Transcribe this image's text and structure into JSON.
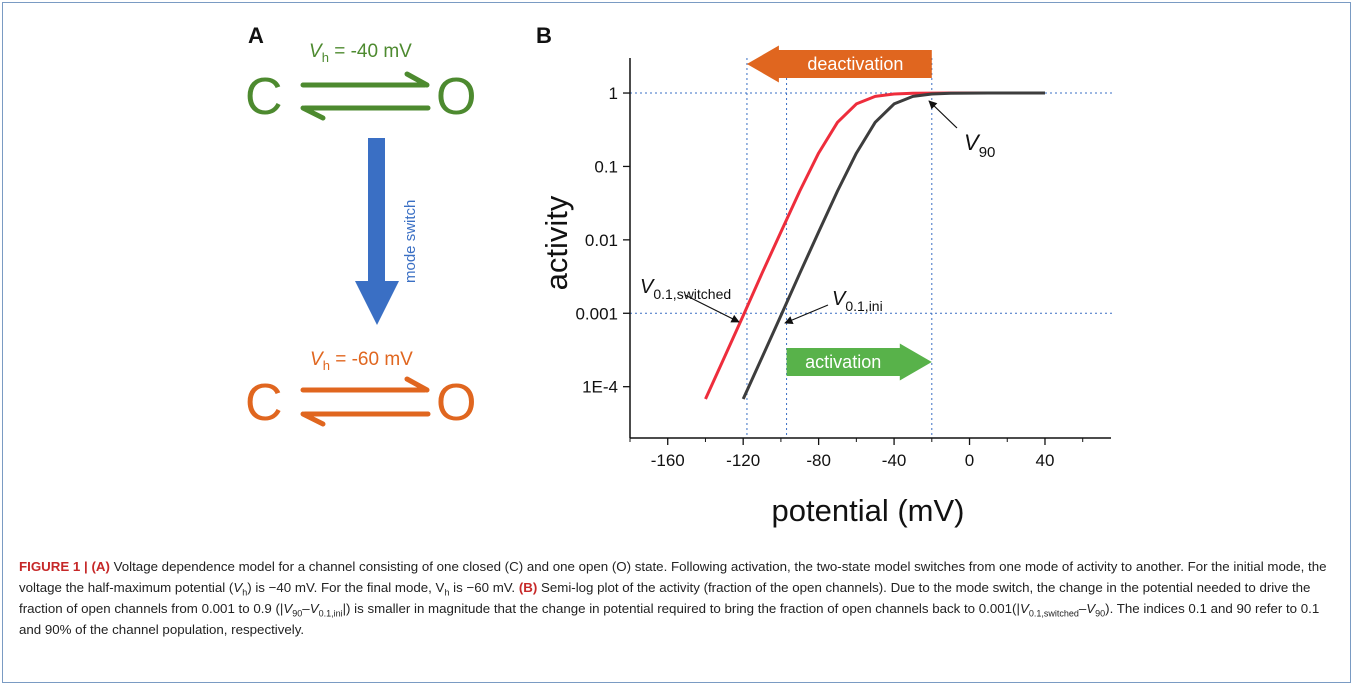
{
  "panel_a": {
    "label": "A",
    "top_state": {
      "vh_symbol": "V",
      "vh_sub": "h",
      "vh_value": " = -40 mV",
      "closed": "C",
      "open": "O",
      "color": "#4d8a2f"
    },
    "switch_label": "mode switch",
    "switch_color": "#3a6fc4",
    "bottom_state": {
      "vh_symbol": "V",
      "vh_sub": "h",
      "vh_value": " = -60 mV",
      "closed": "C",
      "open": "O",
      "color": "#e0661f"
    }
  },
  "panel_b": {
    "label": "B",
    "deactivation_label": "deactivation",
    "deactivation_color": "#e0661f",
    "activation_label": "activation",
    "activation_color": "#58b24a",
    "v90": {
      "symbol": "V",
      "sub": "90"
    },
    "v01_switched": {
      "symbol": "V",
      "sub": "0.1,switched"
    },
    "v01_ini": {
      "symbol": "V",
      "sub": "0.1,ini"
    }
  },
  "chart_data": {
    "type": "line",
    "xlabel": "potential (mV)",
    "ylabel": "activity",
    "y_scale": "log",
    "xlim": [
      -180,
      75
    ],
    "ylim": [
      2e-05,
      3
    ],
    "x_ticks": [
      -160,
      -120,
      -80,
      -40,
      0,
      40
    ],
    "y_ticks": [
      0.0001,
      0.001,
      0.01,
      0.1,
      1
    ],
    "y_tick_labels": [
      "1E-4",
      "0.001",
      "0.01",
      "0.1",
      "1"
    ],
    "grid": false,
    "series": [
      {
        "color": "#ee2d3c",
        "x": [
          -140,
          -130,
          -120,
          -110,
          -100,
          -90,
          -80,
          -70,
          -60,
          -50,
          -40,
          -30,
          -20,
          -10,
          0,
          10,
          20,
          30,
          40
        ],
        "y": [
          6.8e-05,
          0.00025,
          0.00093,
          0.0035,
          0.0128,
          0.0463,
          0.152,
          0.399,
          0.711,
          0.901,
          0.971,
          0.991,
          0.9974,
          0.9993,
          0.9998,
          0.99994,
          0.99998,
          1.0,
          1.0
        ]
      },
      {
        "color": "#3d3d3d",
        "x": [
          -120,
          -110,
          -100,
          -90,
          -80,
          -70,
          -60,
          -50,
          -40,
          -30,
          -20,
          -10,
          0,
          10,
          20,
          30,
          40
        ],
        "y": [
          6.8e-05,
          0.00025,
          0.00093,
          0.0035,
          0.0128,
          0.0463,
          0.152,
          0.399,
          0.711,
          0.901,
          0.971,
          0.991,
          0.9974,
          0.9993,
          0.9998,
          0.99994,
          1.0
        ]
      }
    ],
    "reference_lines": {
      "horizontal_y": [
        1,
        0.001
      ],
      "vertical_x": [
        -118,
        -97,
        -20
      ]
    },
    "arrows": [
      {
        "label": "deactivation",
        "from_x": -20,
        "to_x": -118
      },
      {
        "label": "activation",
        "from_x": -97,
        "to_x": -20
      }
    ]
  },
  "caption": {
    "figure_label": "FIGURE 1 |",
    "a_label": "(A)",
    "a_text": " Voltage dependence model for a channel consisting of one closed (C) and one open (O) state. Following activation, the two-state model switches from one mode of activity to another. For the initial mode, the voltage the half-maximum potential (",
    "vh_sym": "V",
    "vh_sub": "h",
    "a_text2": ") is −40 mV. For the final mode, V",
    "vh_sub2": "h",
    "a_text3": " is −60 mV. ",
    "b_label": "(B)",
    "b_text": " Semi-log plot of the activity (fraction of the open channels). Due to the mode switch, the change in the potential needed to drive the fraction of open channels from 0.001 to 0.9 (|",
    "b_v90": "V",
    "b_v90_sub": "90",
    "b_dash": "–",
    "b_vini": "V",
    "b_vini_sub": "0.1,ini",
    "b_text2": "|) is smaller in magnitude that the change in potential required to bring the fraction of open channels back to 0.001(|",
    "b_vsw": "V",
    "b_vsw_sub": "0.1,switched",
    "b_dash2": "–",
    "b_v90b": "V",
    "b_v90b_sub": "90",
    "b_text3": "). The indices 0.1 and 90 refer to 0.1 and 90% of the channel population, respectively."
  }
}
